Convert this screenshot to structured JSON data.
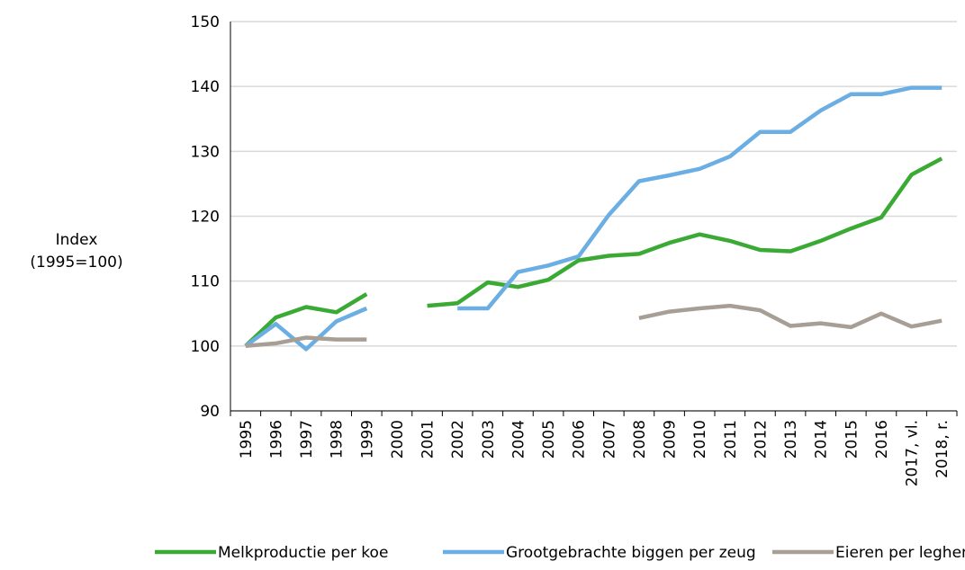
{
  "chart_data": {
    "type": "line",
    "y_label": [
      "Index",
      "(1995=100)"
    ],
    "categories": [
      "1995",
      "1996",
      "1997",
      "1998",
      "1999",
      "2000",
      "2001",
      "2002",
      "2003",
      "2004",
      "2005",
      "2006",
      "2007",
      "2008",
      "2009",
      "2010",
      "2011",
      "2012",
      "2013",
      "2014",
      "2015",
      "2016",
      "2017, vl.",
      "2018, r."
    ],
    "series": [
      {
        "name": "Melkproductie per koe",
        "color": "#3aaa35",
        "values": [
          100,
          104.4,
          106,
          105.2,
          108,
          null,
          106.2,
          106.6,
          109.8,
          109.1,
          110.2,
          113.2,
          113.9,
          114.2,
          115.9,
          117.2,
          116.2,
          114.8,
          114.6,
          116.2,
          118.1,
          119.8,
          126.4,
          128.9
        ]
      },
      {
        "name": "Grootgebrachte biggen per zeug",
        "color": "#6aaee3",
        "values": [
          100,
          103.4,
          99.5,
          103.8,
          105.8,
          null,
          null,
          105.8,
          105.8,
          111.4,
          112.4,
          113.8,
          120.2,
          125.4,
          126.3,
          127.3,
          129.2,
          133,
          133,
          136.3,
          138.8,
          138.8,
          139.8,
          139.8
        ]
      },
      {
        "name": "Eieren per leghen",
        "color": "#a79e95",
        "values": [
          100,
          100.4,
          101.3,
          101,
          101,
          null,
          null,
          null,
          null,
          null,
          null,
          null,
          null,
          104.3,
          105.3,
          105.8,
          106.2,
          105.5,
          103.1,
          103.5,
          102.9,
          105,
          103,
          103.9
        ]
      }
    ],
    "ylim": [
      90,
      150
    ],
    "yticks": [
      90,
      100,
      110,
      120,
      130,
      140,
      150
    ],
    "grid": true,
    "legend": "bottom"
  }
}
